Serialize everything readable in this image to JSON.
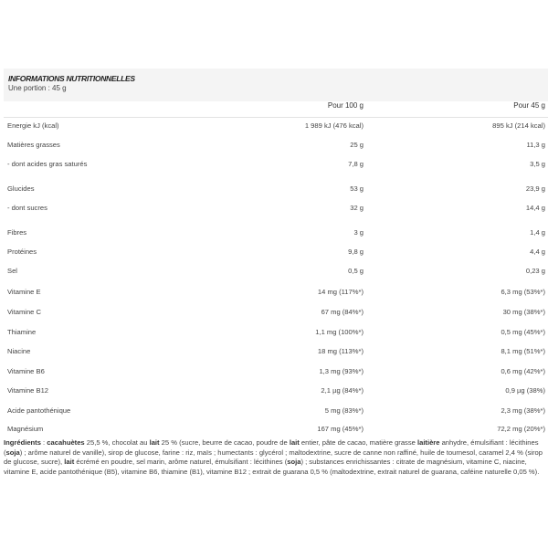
{
  "header": {
    "title": "INFORMATIONS NUTRITIONNELLES",
    "portion": "Une portion : 45 g"
  },
  "columns": {
    "per100": "Pour 100 g",
    "perPortion": "Pour 45 g"
  },
  "rows": [
    {
      "label": "Energie kJ (kcal)",
      "per100": "1 989 kJ (476 kcal)",
      "perPortion": "895 kJ (214 kcal)"
    },
    {
      "label": "Matières grasses",
      "per100": "25 g",
      "perPortion": "11,3 g"
    },
    {
      "label": "- dont acides gras saturés",
      "per100": "7,8 g",
      "perPortion": "3,5 g"
    },
    {
      "label": "Glucides",
      "per100": "53 g",
      "perPortion": "23,9 g"
    },
    {
      "label": "- dont sucres",
      "per100": "32 g",
      "perPortion": "14,4 g"
    },
    {
      "label": "Fibres",
      "per100": "3 g",
      "perPortion": "1,4 g"
    },
    {
      "label": "Protéines",
      "per100": "9,8 g",
      "perPortion": "4,4 g"
    },
    {
      "label": "Sel",
      "per100": "0,5 g",
      "perPortion": "0,23 g"
    },
    {
      "label": "Vitamine E",
      "per100": "14 mg (117%*)",
      "perPortion": "6,3 mg (53%*)"
    },
    {
      "label": "Vitamine C",
      "per100": "67 mg (84%*)",
      "perPortion": "30 mg (38%*)"
    },
    {
      "label": "Thiamine",
      "per100": "1,1 mg (100%*)",
      "perPortion": "0,5 mg (45%*)"
    },
    {
      "label": "Niacine",
      "per100": "18 mg (113%*)",
      "perPortion": "8,1 mg (51%*)"
    },
    {
      "label": "Vitamine B6",
      "per100": "1,3 mg (93%*)",
      "perPortion": "0,6 mg (42%*)"
    },
    {
      "label": "Vitamine B12",
      "per100": "2,1 µg (84%*)",
      "perPortion": "0,9 µg (38%)"
    },
    {
      "label": "Acide pantothénique",
      "per100": "5 mg (83%*)",
      "perPortion": "2,3 mg (38%*)"
    },
    {
      "label": "Magnésium",
      "per100": "167 mg (45%*)",
      "perPortion": "72,2 mg (20%*)"
    }
  ],
  "ingredients": [
    {
      "text": "Ingrédients",
      "bold": true
    },
    {
      "text": " : ",
      "bold": false
    },
    {
      "text": "cacahuètes",
      "bold": true
    },
    {
      "text": " 25,5 %, chocolat au ",
      "bold": false
    },
    {
      "text": "lait",
      "bold": true
    },
    {
      "text": " 25 % (sucre, beurre de cacao, poudre de ",
      "bold": false
    },
    {
      "text": "lait",
      "bold": true
    },
    {
      "text": " entier, pâte de cacao, matière grasse ",
      "bold": false
    },
    {
      "text": "laitière",
      "bold": true
    },
    {
      "text": " anhydre, émulsifiant : lécithines (",
      "bold": false
    },
    {
      "text": "soja",
      "bold": true
    },
    {
      "text": ") ; arôme naturel de vanille), sirop de glucose, farine : riz, maïs ; humectants : glycérol ; maltodextrine, sucre de canne non raffiné, huile de tournesol, caramel 2,4 % (sirop de glucose, sucre), ",
      "bold": false
    },
    {
      "text": "lait",
      "bold": true
    },
    {
      "text": " écrémé en poudre, sel marin, arôme naturel, émulsifiant : lécithines (",
      "bold": false
    },
    {
      "text": "soja",
      "bold": true
    },
    {
      "text": ") ; substances enrichissantes : citrate de magnésium, vitamine C, niacine, vitamine E, acide pantothénique (B5), vitamine B6, thiamine (B1), vitamine B12 ; extrait de guarana 0,5 % (maltodextrine, extrait naturel de guarana, caféine naturelle 0,05 %).",
      "bold": false
    }
  ]
}
